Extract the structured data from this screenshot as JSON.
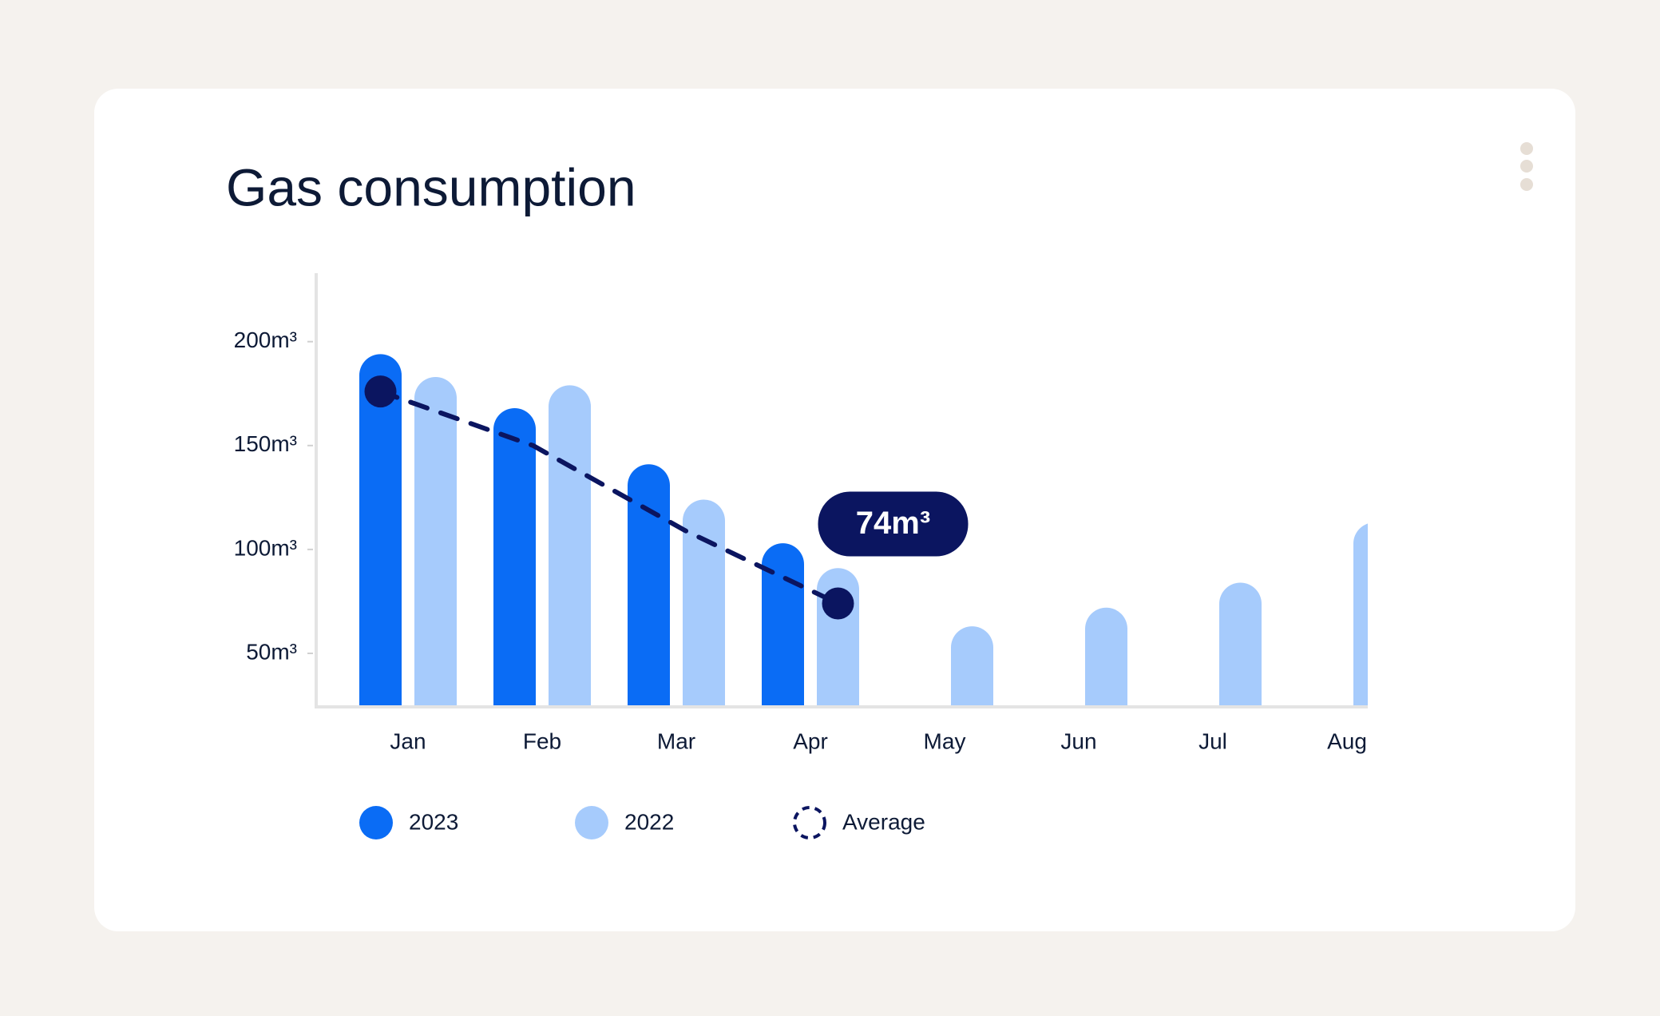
{
  "chart_data": {
    "type": "bar",
    "title": "Gas consumption",
    "categories": [
      "Jan",
      "Feb",
      "Mar",
      "Apr",
      "May",
      "Jun",
      "Jul",
      "Aug"
    ],
    "series": [
      {
        "name": "2023",
        "color": "#0a6cf5",
        "values": [
          194,
          168,
          141,
          103,
          null,
          null,
          null,
          null
        ]
      },
      {
        "name": "2022",
        "color": "#a6cbfc",
        "values": [
          183,
          179,
          124,
          91,
          63,
          72,
          84,
          113
        ]
      },
      {
        "name": "Average",
        "type": "line",
        "color": "#0b1560",
        "dashed": true,
        "values": [
          176,
          150,
          109,
          74,
          null,
          null,
          null,
          null
        ],
        "value_labels": [
          null,
          null,
          null,
          "74m³",
          null,
          null,
          null,
          null
        ]
      }
    ],
    "ylim": [
      25,
      230
    ],
    "yticks": [
      {
        "value": 50,
        "label": "50m³"
      },
      {
        "value": 100,
        "label": "100m³"
      },
      {
        "value": 150,
        "label": "150m³"
      },
      {
        "value": 200,
        "label": "200m³"
      }
    ]
  }
}
